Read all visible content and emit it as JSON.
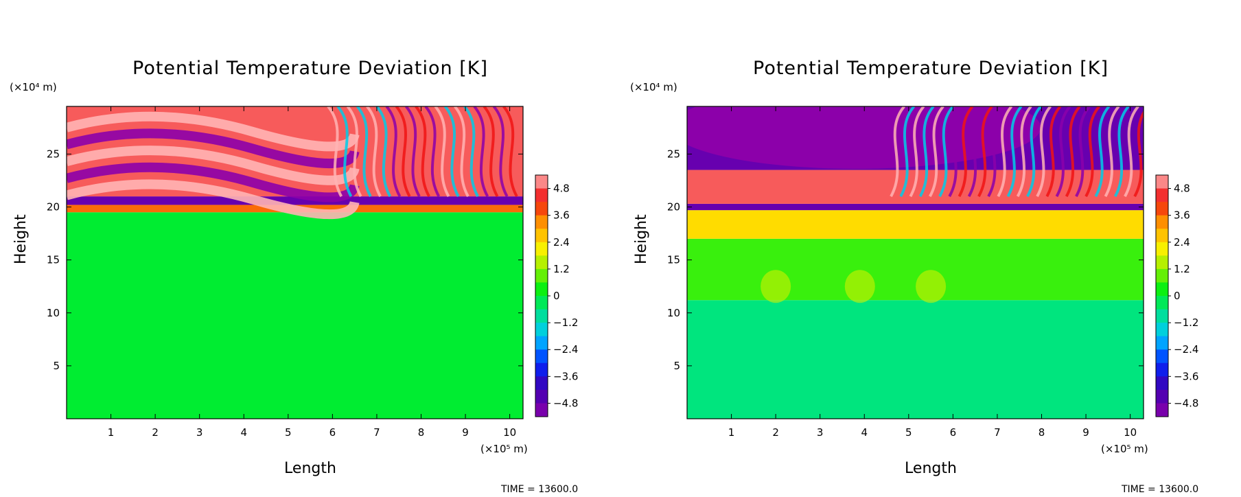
{
  "chart_data": [
    {
      "type": "heatmap",
      "title": "Potential Temperature Deviation [K]",
      "xlabel": "Length",
      "ylabel": "Height",
      "x_unit": "(×10⁵ m)",
      "y_unit": "(×10⁴ m)",
      "x_ticks": [
        "1",
        "2",
        "3",
        "4",
        "5",
        "6",
        "7",
        "8",
        "9",
        "10"
      ],
      "y_ticks": [
        "5",
        "10",
        "15",
        "20",
        "25"
      ],
      "xlim": [
        0,
        10.3
      ],
      "ylim": [
        0,
        29.5
      ],
      "colorbar_ticks": [
        "4.8",
        "3.6",
        "2.4",
        "1.2",
        "0",
        "-1.2",
        "-2.4",
        "-3.6",
        "-4.8"
      ],
      "colorbar_range": [
        -5.4,
        5.4
      ],
      "time_label": "TIME = 13600.0",
      "bands": [
        {
          "y_from": 0,
          "y_to": 19.5,
          "value": 0.0
        },
        {
          "y_from": 19.5,
          "y_to": 20.2,
          "value": 3.6
        },
        {
          "y_from": 20.2,
          "y_to": 21.0,
          "value": -4.8
        },
        {
          "y_from": 21.0,
          "y_to": 29.5,
          "value": 4.8,
          "pattern": "wave-left"
        }
      ]
    },
    {
      "type": "heatmap",
      "title": "Potential Temperature Deviation [K]",
      "xlabel": "Length",
      "ylabel": "Height",
      "x_unit": "(×10⁵ m)",
      "y_unit": "(×10⁴ m)",
      "x_ticks": [
        "1",
        "2",
        "3",
        "4",
        "5",
        "6",
        "7",
        "8",
        "9",
        "10"
      ],
      "y_ticks": [
        "5",
        "10",
        "15",
        "20",
        "25"
      ],
      "xlim": [
        0,
        10.3
      ],
      "ylim": [
        0,
        29.5
      ],
      "colorbar_ticks": [
        "4.8",
        "3.6",
        "2.4",
        "1.2",
        "0",
        "-1.2",
        "-2.4",
        "-3.6",
        "-4.8"
      ],
      "colorbar_range": [
        -5.4,
        5.4
      ],
      "time_label": "TIME = 13600.0",
      "bands": [
        {
          "y_from": 0,
          "y_to": 11.2,
          "value": -0.6
        },
        {
          "y_from": 11.2,
          "y_to": 17.0,
          "value": 0.6
        },
        {
          "y_from": 17.0,
          "y_to": 19.7,
          "value": 2.4
        },
        {
          "y_from": 19.7,
          "y_to": 20.3,
          "value": -4.8
        },
        {
          "y_from": 20.3,
          "y_to": 23.5,
          "value": 4.8
        },
        {
          "y_from": 23.5,
          "y_to": 29.5,
          "value": -4.8,
          "pattern": "wave-right"
        }
      ]
    }
  ]
}
